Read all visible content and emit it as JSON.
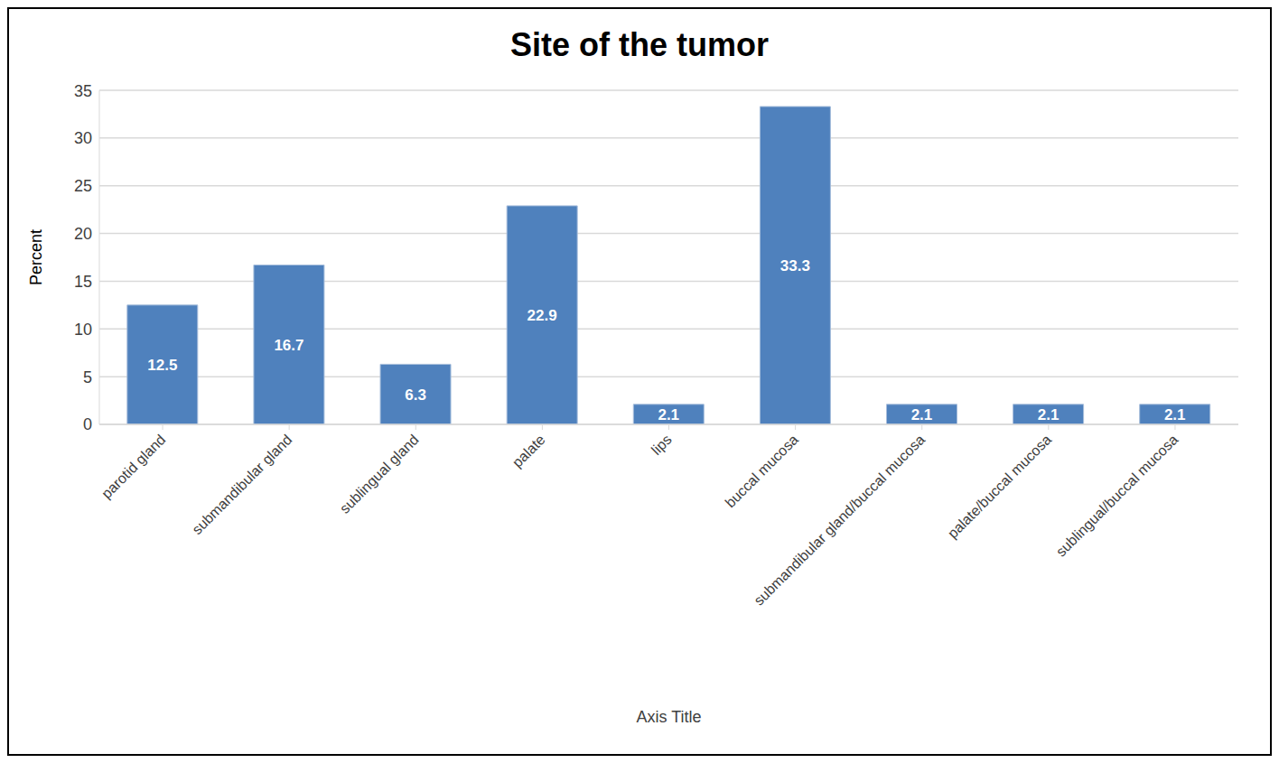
{
  "chart_data": {
    "type": "bar",
    "title": "Site of the tumor",
    "x_label": "Axis Title",
    "y_label": "Percent",
    "categories": [
      "parotid gland",
      "submandibular gland",
      "sublingual gland",
      "palate",
      "lips",
      "buccal mucosa",
      "submandibular gland/buccal mucosa",
      "palate/buccal mucosa",
      "sublingual/buccal mucosa"
    ],
    "values": [
      12.5,
      16.7,
      6.3,
      22.9,
      2.1,
      33.3,
      2.1,
      2.1,
      2.1
    ],
    "color": "#4f81bd",
    "ylim": [
      0,
      35
    ],
    "yticks": [
      0,
      5,
      10,
      15,
      20,
      25,
      30,
      35
    ],
    "grid": true,
    "data_labels": true
  }
}
